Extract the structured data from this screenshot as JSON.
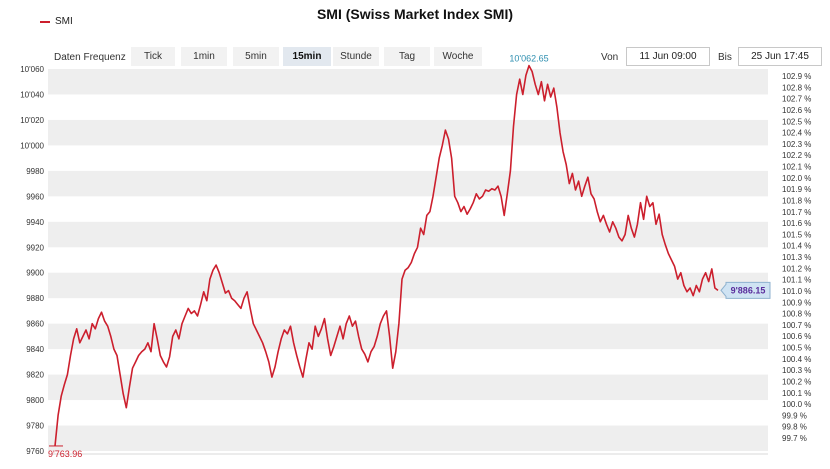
{
  "chart_data": {
    "type": "line",
    "title": "SMI (Swiss Market Index SMI)",
    "series": [
      {
        "name": "SMI",
        "color": "#cc1f2d",
        "values": [
          9763.96,
          9788,
          9803,
          9812,
          9820,
          9835,
          9848,
          9856,
          9845,
          9850,
          9855,
          9848,
          9860,
          9856,
          9864,
          9869,
          9862,
          9858,
          9850,
          9840,
          9835,
          9820,
          9805,
          9794,
          9810,
          9825,
          9830,
          9835,
          9838,
          9840,
          9845,
          9838,
          9860,
          9848,
          9835,
          9830,
          9826,
          9834,
          9850,
          9855,
          9848,
          9860,
          9866,
          9872,
          9868,
          9870,
          9866,
          9875,
          9885,
          9878,
          9895,
          9902,
          9906,
          9900,
          9892,
          9884,
          9886,
          9880,
          9878,
          9875,
          9872,
          9880,
          9885,
          9872,
          9860,
          9855,
          9850,
          9845,
          9838,
          9830,
          9818,
          9826,
          9838,
          9848,
          9855,
          9852,
          9858,
          9845,
          9835,
          9826,
          9818,
          9832,
          9845,
          9840,
          9858,
          9850,
          9856,
          9864,
          9848,
          9835,
          9842,
          9850,
          9858,
          9848,
          9860,
          9866,
          9858,
          9862,
          9850,
          9840,
          9836,
          9830,
          9838,
          9842,
          9850,
          9860,
          9866,
          9870,
          9850,
          9825,
          9838,
          9860,
          9895,
          9902,
          9904,
          9908,
          9915,
          9920,
          9935,
          9930,
          9945,
          9948,
          9960,
          9975,
          9990,
          10000,
          10012,
          10005,
          9990,
          9960,
          9955,
          9948,
          9952,
          9946,
          9950,
          9955,
          9962,
          9958,
          9960,
          9965,
          9964,
          9966,
          9965,
          9968,
          9960,
          9945,
          9962,
          9980,
          10015,
          10040,
          10052,
          10040,
          10055,
          10062.65,
          10058,
          10048,
          10040,
          10050,
          10035,
          10048,
          10038,
          10045,
          10030,
          10010,
          9995,
          9985,
          9970,
          9978,
          9965,
          9972,
          9960,
          9968,
          9975,
          9962,
          9958,
          9948,
          9940,
          9945,
          9938,
          9932,
          9940,
          9935,
          9928,
          9925,
          9930,
          9945,
          9935,
          9928,
          9938,
          9955,
          9942,
          9960,
          9952,
          9955,
          9938,
          9946,
          9930,
          9922,
          9915,
          9910,
          9905,
          9895,
          9900,
          9890,
          9885,
          9888,
          9882,
          9890,
          9885,
          9895,
          9900,
          9893,
          9903,
          9888,
          9886.15
        ]
      }
    ],
    "y_left": {
      "min": 9760,
      "max": 10060,
      "ticks": [
        "9760",
        "9780",
        "9800",
        "9820",
        "9840",
        "9860",
        "9880",
        "9900",
        "9920",
        "9940",
        "9960",
        "9980",
        "10'000",
        "10'020",
        "10'040",
        "10'060"
      ]
    },
    "y_right": {
      "min": 99.7,
      "max": 102.9,
      "ticks": [
        "99.7 %",
        "99.8 %",
        "99.9 %",
        "100.0 %",
        "100.1 %",
        "100.2 %",
        "100.3 %",
        "100.4 %",
        "100.5 %",
        "100.6 %",
        "100.7 %",
        "100.8 %",
        "100.9 %",
        "101.0 %",
        "101.1 %",
        "101.2 %",
        "101.3 %",
        "101.4 %",
        "101.5 %",
        "101.6 %",
        "101.7 %",
        "101.8 %",
        "101.9 %",
        "102.0 %",
        "102.1 %",
        "102.2 %",
        "102.3 %",
        "102.4 %",
        "102.5 %",
        "102.6 %",
        "102.7 %",
        "102.8 %",
        "102.9 %"
      ]
    },
    "annotations": {
      "max_label": "10'062.65",
      "min_label": "9'763.96",
      "last_label": "9'886.15"
    },
    "grid": "alternating horizontal bands",
    "legend_position": "top-left"
  },
  "toolbar": {
    "frequency_label": "Daten Frequenz",
    "buttons": [
      "Tick",
      "1min",
      "5min",
      "15min",
      "Stunde",
      "Tag",
      "Woche"
    ],
    "active": "15min",
    "from_label": "Von",
    "from_value": "11 Jun 09:00",
    "to_label": "Bis",
    "to_value": "25 Jun 17:45"
  },
  "colors": {
    "line": "#cc1f2d",
    "band": "#eeeeee",
    "max_label": "#2f8fb0",
    "last_label_bg": "#cfe3f3",
    "last_label_text": "#5a2d9c"
  }
}
